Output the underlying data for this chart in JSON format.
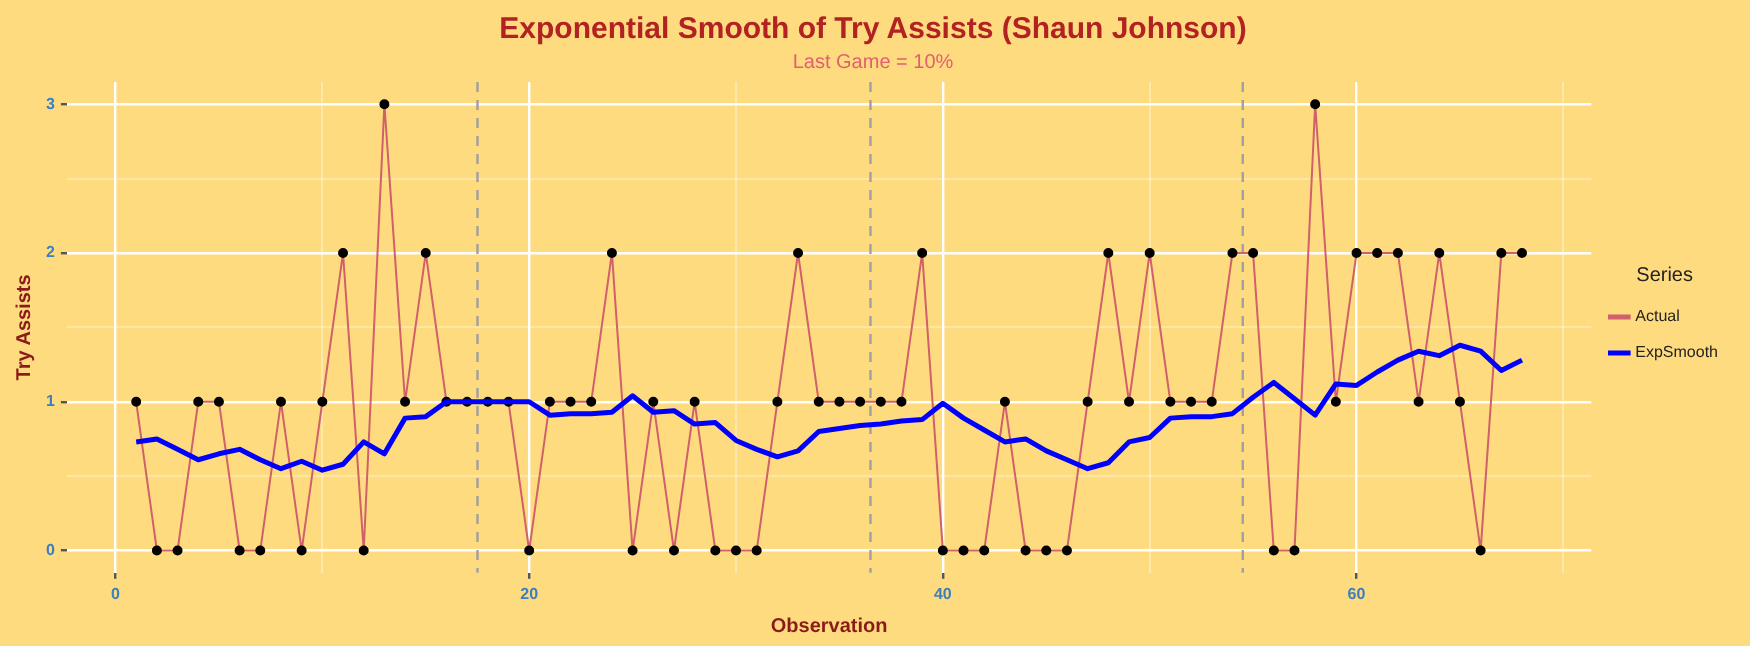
{
  "chart_data": {
    "type": "line",
    "title": "Exponential Smooth of Try Assists (Shaun Johnson)",
    "subtitle": "Last Game = 10%",
    "xlabel": "Observation",
    "ylabel": "Try Assists",
    "legend_title": "Series",
    "legend": "right",
    "grid": true,
    "marker": "circle",
    "x": [
      1,
      2,
      3,
      4,
      5,
      6,
      7,
      8,
      9,
      10,
      11,
      12,
      13,
      14,
      15,
      16,
      17,
      18,
      19,
      20,
      21,
      22,
      23,
      24,
      25,
      26,
      27,
      28,
      29,
      30,
      31,
      32,
      33,
      34,
      35,
      36,
      37,
      38,
      39,
      40,
      41,
      42,
      43,
      44,
      45,
      46,
      47,
      48,
      49,
      50,
      51,
      52,
      53,
      54,
      55,
      56,
      57,
      58,
      59,
      60,
      61,
      62,
      63,
      64,
      65,
      66,
      67,
      68
    ],
    "xlim": [
      -2.35,
      71.35
    ],
    "xticks": [
      0,
      {
        "value": 10,
        "label": null
      },
      20,
      {
        "value": 30,
        "label": null
      },
      40,
      {
        "value": 50,
        "label": null
      },
      60,
      {
        "value": 70,
        "label": null
      }
    ],
    "ylim": [
      -0.15,
      3.15
    ],
    "yticks": [
      0,
      {
        "value": 0.5,
        "label": null
      },
      1,
      {
        "value": 1.5,
        "label": null
      },
      2,
      {
        "value": 2.5,
        "label": null
      },
      3
    ],
    "series": [
      {
        "name": "Actual",
        "color": "#d0606a",
        "values": [
          1,
          0,
          0,
          1,
          1,
          0,
          0,
          1,
          0,
          1,
          2,
          0,
          3,
          1,
          2,
          1,
          1,
          1,
          1,
          0,
          1,
          1,
          1,
          2,
          0,
          1,
          0,
          1,
          0,
          0,
          0,
          1,
          2,
          1,
          1,
          1,
          1,
          1,
          2,
          0,
          0,
          0,
          1,
          0,
          0,
          0,
          1,
          2,
          1,
          2,
          1,
          1,
          1,
          2,
          2,
          0,
          0,
          3,
          1,
          2,
          2,
          2,
          1,
          2,
          1,
          0,
          2,
          2
        ]
      },
      {
        "name": "ExpSmooth",
        "color": "#0000ff",
        "marker": "none",
        "values": [
          0.73,
          0.75,
          0.68,
          0.61,
          0.65,
          0.68,
          0.61,
          0.55,
          0.6,
          0.54,
          0.58,
          0.73,
          0.65,
          0.89,
          0.9,
          1.0,
          1.0,
          1.0,
          1.0,
          1.0,
          0.91,
          0.92,
          0.92,
          0.93,
          1.04,
          0.93,
          0.94,
          0.85,
          0.86,
          0.74,
          0.68,
          0.63,
          0.67,
          0.8,
          0.82,
          0.84,
          0.85,
          0.87,
          0.88,
          0.99,
          0.89,
          0.81,
          0.73,
          0.75,
          0.67,
          0.61,
          0.55,
          0.59,
          0.73,
          0.76,
          0.89,
          0.9,
          0.9,
          0.92,
          1.03,
          1.13,
          1.02,
          0.91,
          1.12,
          1.11,
          1.2,
          1.28,
          1.34,
          1.31,
          1.38,
          1.34,
          1.21,
          1.28
        ]
      }
    ],
    "ref_lines": [
      {
        "axis": "x",
        "value": 17.5,
        "color": "#a0a0a0",
        "line_style": "dashed"
      },
      {
        "axis": "x",
        "value": 36.5,
        "color": "#a0a0a0",
        "line_style": "dashed"
      },
      {
        "axis": "x",
        "value": 54.5,
        "color": "#a0a0a0",
        "line_style": "dashed"
      }
    ]
  }
}
